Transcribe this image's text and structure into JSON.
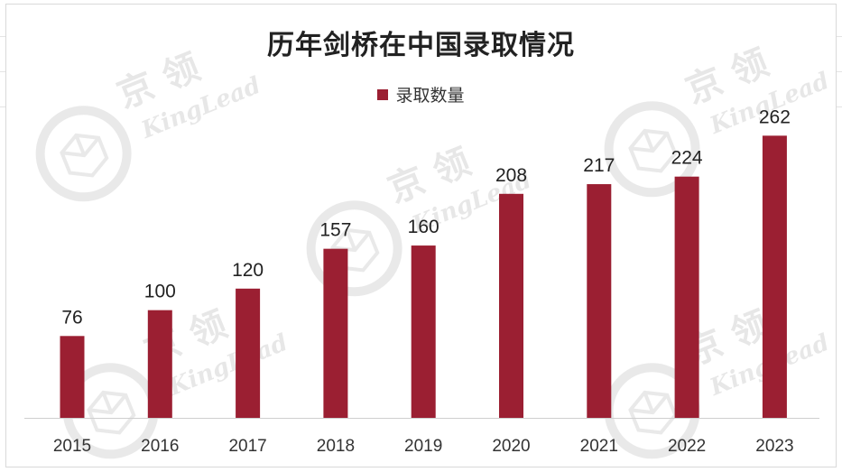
{
  "chart_data": {
    "type": "bar",
    "title": "历年剑桥在中国录取情况",
    "categories": [
      "2015",
      "2016",
      "2017",
      "2018",
      "2019",
      "2020",
      "2021",
      "2022",
      "2023"
    ],
    "series": [
      {
        "name": "录取数量",
        "values": [
          76,
          100,
          120,
          157,
          160,
          208,
          217,
          224,
          262
        ]
      }
    ],
    "ylim": [
      0,
      300
    ],
    "grid": false,
    "legend_position": "top-center",
    "data_labels": true
  },
  "colors": {
    "bar": "#9b1f32",
    "text": "#222222",
    "axis": "#cfcfcf"
  },
  "watermark": {
    "text_cn": "京 领",
    "text_en": "KingLead"
  }
}
